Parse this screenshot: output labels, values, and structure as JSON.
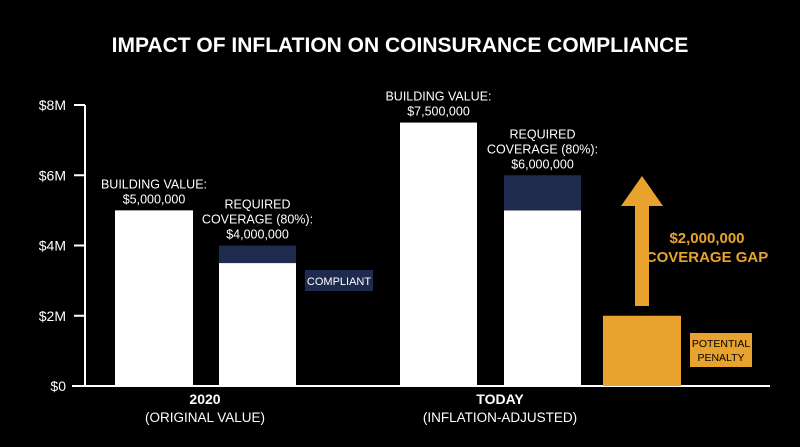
{
  "chart_data": {
    "type": "bar",
    "title": "IMPACT OF INFLATION ON COINSURANCE COMPLIANCE",
    "y_ticks": [
      "$0",
      "$2M",
      "$4M",
      "$6M",
      "$8M"
    ],
    "ylim": [
      0,
      8000000
    ],
    "groups": [
      {
        "label": "2020",
        "sublabel": "(ORIGINAL VALUE)",
        "building_value": 5000000,
        "building_label": [
          "BUILDING VALUE:",
          "$5,000,000"
        ],
        "required_coverage": 4000000,
        "coverage_in_force": 3500000,
        "coverage_label": [
          "REQUIRED",
          "COVERAGE (80%):",
          "$4,000,000"
        ],
        "status_badge": "COMPLIANT"
      },
      {
        "label": "TODAY",
        "sublabel": "(INFLATION-ADJUSTED)",
        "building_value": 7500000,
        "building_label": [
          "BUILDING VALUE:",
          "$7,500,000"
        ],
        "required_coverage": 6000000,
        "coverage_in_force": 5000000,
        "coverage_label": [
          "REQUIRED",
          "COVERAGE (80%):",
          "$6,000,000"
        ],
        "penalty_value": 2000000,
        "penalty_label": [
          "POTENTIAL",
          "PENALTY"
        ],
        "gap_label": [
          "$2,000,000",
          "COVERAGE GAP"
        ]
      }
    ],
    "colors": {
      "background": "#000000",
      "bar": "#ffffff",
      "required_cap": "#1e2a4e",
      "accent": "#e8a32e",
      "badge": "#1e2a4e"
    }
  }
}
